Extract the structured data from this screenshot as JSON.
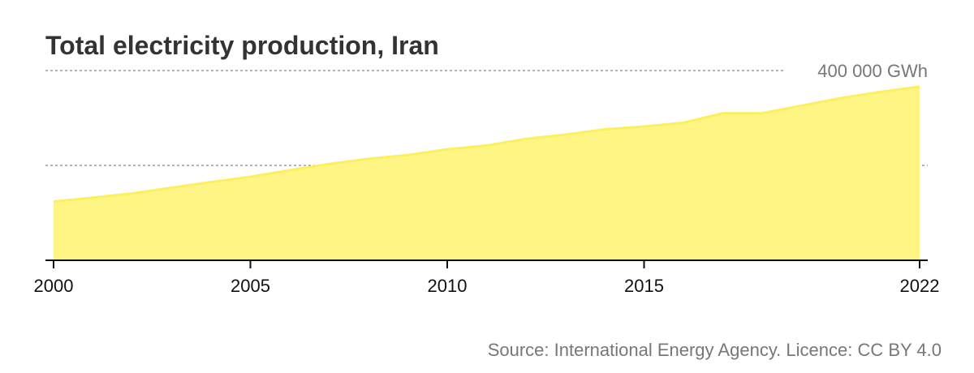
{
  "title": "Total electricity production, Iran",
  "source": "Source: International Energy Agency. Licence: CC BY 4.0",
  "colors": {
    "area_fill": "#fff585",
    "area_line": "#fdf05f",
    "gridline": "#888888",
    "axis": "#111111"
  },
  "chart_data": {
    "type": "area",
    "title": "Total electricity production, Iran",
    "x": [
      2000,
      2001,
      2002,
      2003,
      2004,
      2005,
      2006,
      2007,
      2008,
      2009,
      2010,
      2011,
      2012,
      2013,
      2014,
      2015,
      2016,
      2017,
      2018,
      2019,
      2020,
      2021,
      2022
    ],
    "series": [
      {
        "values": [
          124000,
          132000,
          141000,
          153000,
          165000,
          176000,
          190000,
          203000,
          214000,
          222000,
          234000,
          242000,
          256000,
          265000,
          276000,
          282000,
          290000,
          310000,
          310000,
          326000,
          342000,
          355000,
          366000
        ]
      }
    ],
    "xticks": [
      {
        "value": 2000,
        "label": "2000"
      },
      {
        "value": 2005,
        "label": "2005"
      },
      {
        "value": 2010,
        "label": "2010"
      },
      {
        "value": 2015,
        "label": "2015"
      },
      {
        "value": 2022,
        "label": "2022"
      }
    ],
    "ygrid": [
      {
        "value": 200000,
        "label": ""
      },
      {
        "value": 400000,
        "label": "400 000 GWh"
      }
    ],
    "xlim": [
      2000,
      2022
    ],
    "ylim": [
      0,
      400000
    ],
    "grid": true,
    "legend": "none"
  }
}
